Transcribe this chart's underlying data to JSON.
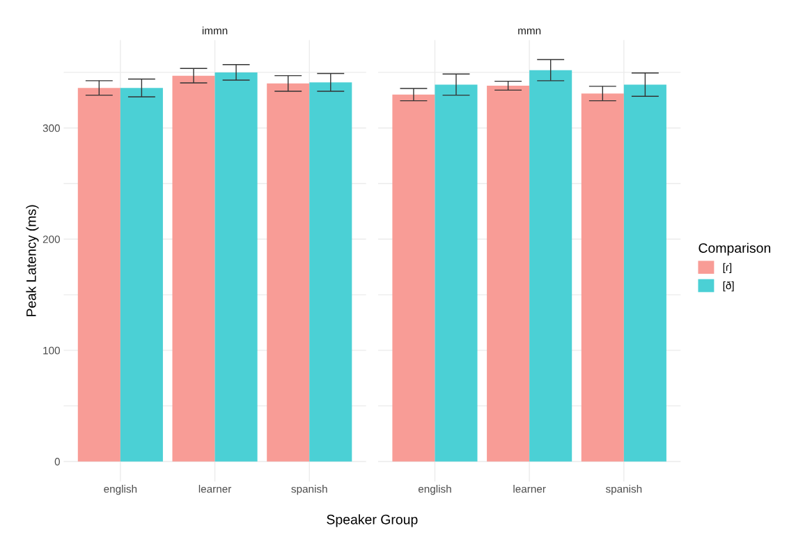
{
  "chart_data": [
    {
      "type": "bar",
      "title": "immn",
      "legend_title": "Comparison",
      "legend": "right",
      "xlabel": "Speaker Group",
      "ylabel": "Peak Latency (ms)",
      "categories": [
        "english",
        "learner",
        "spanish"
      ],
      "series": [
        {
          "name": "[ɾ]",
          "color": "#f89c96",
          "values": [
            336,
            347,
            340
          ],
          "errors": [
            6.5,
            6.5,
            7
          ]
        },
        {
          "name": "[ð]",
          "color": "#4bd0d5",
          "values": [
            336,
            350,
            341
          ],
          "errors": [
            8,
            7,
            8
          ]
        }
      ],
      "ylim": [
        -18,
        379
      ],
      "yticks": [
        0,
        {
          "value": 50,
          "label": null
        },
        100,
        {
          "value": 150,
          "label": null
        },
        200,
        {
          "value": 250,
          "label": null
        },
        300,
        {
          "value": 350,
          "label": null
        }
      ],
      "grid": true
    },
    {
      "type": "bar",
      "title": "mmn",
      "categories": [
        "english",
        "learner",
        "spanish"
      ],
      "series": [
        {
          "color": "#f89c96",
          "values": [
            330,
            338,
            331
          ],
          "errors": [
            5.5,
            4,
            6.5
          ]
        },
        {
          "color": "#4bd0d5",
          "values": [
            339,
            352,
            339
          ],
          "errors": [
            9.5,
            9.5,
            10.5
          ]
        }
      ],
      "ylim": [
        -18,
        379
      ],
      "yticks": [
        0,
        {
          "value": 50,
          "label": null
        },
        100,
        {
          "value": 150,
          "label": null
        },
        200,
        {
          "value": 250,
          "label": null
        },
        300,
        {
          "value": 350,
          "label": null
        }
      ],
      "tick_labels": "x",
      "grid": true
    }
  ]
}
